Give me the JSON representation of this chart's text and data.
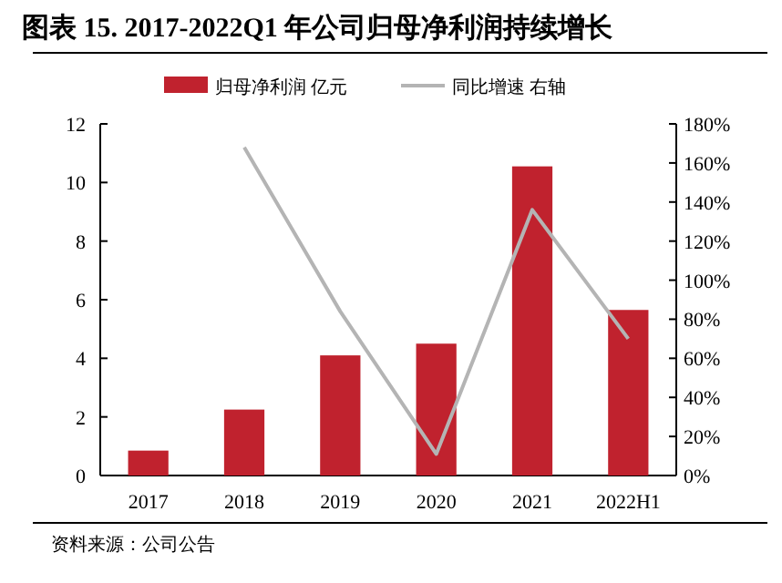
{
  "chart_data": {
    "type": "bar",
    "title": "图表 15. 2017-2022Q1 年公司归母净利润持续增长",
    "categories": [
      "2017",
      "2018",
      "2019",
      "2020",
      "2021",
      "2022H1"
    ],
    "series": [
      {
        "name": "归母净利润 亿元",
        "color": "#c0222e",
        "values": [
          0.85,
          2.25,
          4.1,
          4.5,
          10.55,
          5.65
        ]
      },
      {
        "name": "同比增速 右轴",
        "type": "line",
        "axis": "y2",
        "color": "#b4b4b4",
        "values": [
          null,
          168,
          84,
          11,
          136,
          70
        ]
      }
    ],
    "ylim": [
      0,
      12
    ],
    "yticks": [
      0,
      2,
      4,
      6,
      8,
      10,
      12
    ],
    "y2lim": [
      0,
      180
    ],
    "y2ticks": [
      {
        "value": 0,
        "label": "0%"
      },
      {
        "value": 20,
        "label": "20%"
      },
      {
        "value": 40,
        "label": "40%"
      },
      {
        "value": 60,
        "label": "60%"
      },
      {
        "value": 80,
        "label": "80%"
      },
      {
        "value": 100,
        "label": "100%"
      },
      {
        "value": 120,
        "label": "120%"
      },
      {
        "value": 140,
        "label": "140%"
      },
      {
        "value": 160,
        "label": "160%"
      },
      {
        "value": 180,
        "label": "180%"
      }
    ],
    "legend": "top",
    "marker": "none",
    "annotations": [
      "资料来源：公司公告"
    ]
  }
}
